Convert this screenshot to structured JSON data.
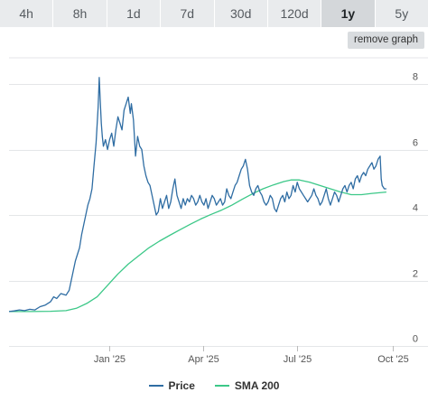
{
  "tabs": [
    {
      "label": "4h",
      "active": false
    },
    {
      "label": "8h",
      "active": false
    },
    {
      "label": "1d",
      "active": false
    },
    {
      "label": "7d",
      "active": false
    },
    {
      "label": "30d",
      "active": false
    },
    {
      "label": "120d",
      "active": false
    },
    {
      "label": "1y",
      "active": true
    },
    {
      "label": "5y",
      "active": false
    }
  ],
  "remove_graph_label": "remove graph",
  "chart_data": {
    "type": "line",
    "title": "",
    "xlabel": "",
    "ylabel": "",
    "ylim": [
      0,
      8.8
    ],
    "yticks": [
      0,
      2,
      4,
      6,
      8
    ],
    "grid": true,
    "legend": "bottom",
    "x_ticks": [
      {
        "label": "Jan '25",
        "day": 97
      },
      {
        "label": "Apr '25",
        "day": 187
      },
      {
        "label": "Jul '25",
        "day": 278
      },
      {
        "label": "Oct '25",
        "day": 370
      }
    ],
    "xlim_days": [
      0,
      378
    ],
    "x_unit": "days from 2024-09-26",
    "series": [
      {
        "name": "Price",
        "color": "#2f6da3",
        "points": [
          [
            0,
            1.05
          ],
          [
            5,
            1.07
          ],
          [
            10,
            1.1
          ],
          [
            15,
            1.08
          ],
          [
            20,
            1.12
          ],
          [
            25,
            1.1
          ],
          [
            30,
            1.2
          ],
          [
            35,
            1.25
          ],
          [
            40,
            1.35
          ],
          [
            43,
            1.5
          ],
          [
            46,
            1.45
          ],
          [
            50,
            1.6
          ],
          [
            55,
            1.55
          ],
          [
            58,
            1.7
          ],
          [
            60,
            2.0
          ],
          [
            62,
            2.3
          ],
          [
            64,
            2.6
          ],
          [
            66,
            2.8
          ],
          [
            68,
            3.0
          ],
          [
            70,
            3.4
          ],
          [
            72,
            3.7
          ],
          [
            74,
            4.0
          ],
          [
            76,
            4.3
          ],
          [
            78,
            4.5
          ],
          [
            80,
            4.8
          ],
          [
            82,
            5.5
          ],
          [
            84,
            6.2
          ],
          [
            86,
            7.3
          ],
          [
            87,
            8.2
          ],
          [
            88,
            7.5
          ],
          [
            89,
            6.8
          ],
          [
            90,
            6.4
          ],
          [
            91,
            6.1
          ],
          [
            93,
            6.3
          ],
          [
            95,
            6.0
          ],
          [
            97,
            6.3
          ],
          [
            99,
            6.5
          ],
          [
            101,
            6.1
          ],
          [
            103,
            6.6
          ],
          [
            105,
            7.0
          ],
          [
            107,
            6.8
          ],
          [
            109,
            6.6
          ],
          [
            111,
            7.2
          ],
          [
            113,
            7.4
          ],
          [
            115,
            7.6
          ],
          [
            117,
            7.1
          ],
          [
            118,
            7.4
          ],
          [
            120,
            6.9
          ],
          [
            122,
            5.8
          ],
          [
            124,
            6.4
          ],
          [
            126,
            6.1
          ],
          [
            128,
            6.0
          ],
          [
            130,
            5.5
          ],
          [
            132,
            5.2
          ],
          [
            134,
            5.0
          ],
          [
            136,
            4.9
          ],
          [
            138,
            4.6
          ],
          [
            140,
            4.3
          ],
          [
            142,
            4.0
          ],
          [
            144,
            4.1
          ],
          [
            146,
            4.5
          ],
          [
            148,
            4.2
          ],
          [
            150,
            4.4
          ],
          [
            152,
            4.6
          ],
          [
            154,
            4.2
          ],
          [
            156,
            4.4
          ],
          [
            158,
            4.8
          ],
          [
            160,
            5.1
          ],
          [
            162,
            4.6
          ],
          [
            164,
            4.4
          ],
          [
            166,
            4.2
          ],
          [
            168,
            4.5
          ],
          [
            170,
            4.3
          ],
          [
            172,
            4.5
          ],
          [
            174,
            4.4
          ],
          [
            176,
            4.6
          ],
          [
            178,
            4.5
          ],
          [
            180,
            4.3
          ],
          [
            182,
            4.4
          ],
          [
            184,
            4.6
          ],
          [
            186,
            4.4
          ],
          [
            188,
            4.3
          ],
          [
            190,
            4.5
          ],
          [
            192,
            4.2
          ],
          [
            194,
            4.4
          ],
          [
            196,
            4.6
          ],
          [
            198,
            4.5
          ],
          [
            200,
            4.3
          ],
          [
            202,
            4.4
          ],
          [
            204,
            4.5
          ],
          [
            206,
            4.3
          ],
          [
            208,
            4.4
          ],
          [
            210,
            4.8
          ],
          [
            212,
            4.6
          ],
          [
            214,
            4.5
          ],
          [
            216,
            4.7
          ],
          [
            218,
            4.9
          ],
          [
            220,
            5.0
          ],
          [
            222,
            5.2
          ],
          [
            224,
            5.4
          ],
          [
            226,
            5.5
          ],
          [
            228,
            5.7
          ],
          [
            230,
            5.4
          ],
          [
            232,
            4.9
          ],
          [
            234,
            4.7
          ],
          [
            236,
            4.6
          ],
          [
            238,
            4.8
          ],
          [
            240,
            4.9
          ],
          [
            242,
            4.7
          ],
          [
            244,
            4.6
          ],
          [
            246,
            4.4
          ],
          [
            248,
            4.3
          ],
          [
            250,
            4.4
          ],
          [
            252,
            4.6
          ],
          [
            254,
            4.5
          ],
          [
            256,
            4.2
          ],
          [
            258,
            4.1
          ],
          [
            260,
            4.3
          ],
          [
            262,
            4.5
          ],
          [
            264,
            4.6
          ],
          [
            266,
            4.4
          ],
          [
            268,
            4.7
          ],
          [
            270,
            4.5
          ],
          [
            272,
            4.6
          ],
          [
            274,
            4.9
          ],
          [
            276,
            4.7
          ],
          [
            278,
            5.0
          ],
          [
            280,
            4.8
          ],
          [
            282,
            4.7
          ],
          [
            284,
            4.6
          ],
          [
            286,
            4.5
          ],
          [
            288,
            4.4
          ],
          [
            290,
            4.5
          ],
          [
            292,
            4.6
          ],
          [
            294,
            4.8
          ],
          [
            296,
            4.6
          ],
          [
            298,
            4.5
          ],
          [
            300,
            4.3
          ],
          [
            302,
            4.4
          ],
          [
            304,
            4.6
          ],
          [
            306,
            4.8
          ],
          [
            308,
            4.5
          ],
          [
            310,
            4.3
          ],
          [
            312,
            4.5
          ],
          [
            314,
            4.7
          ],
          [
            316,
            4.6
          ],
          [
            318,
            4.4
          ],
          [
            320,
            4.6
          ],
          [
            322,
            4.8
          ],
          [
            324,
            4.9
          ],
          [
            326,
            4.7
          ],
          [
            328,
            4.9
          ],
          [
            330,
            5.0
          ],
          [
            332,
            4.8
          ],
          [
            334,
            5.1
          ],
          [
            336,
            5.2
          ],
          [
            338,
            5.0
          ],
          [
            340,
            5.2
          ],
          [
            342,
            5.3
          ],
          [
            344,
            5.2
          ],
          [
            346,
            5.4
          ],
          [
            348,
            5.5
          ],
          [
            350,
            5.6
          ],
          [
            352,
            5.4
          ],
          [
            354,
            5.5
          ],
          [
            356,
            5.7
          ],
          [
            358,
            5.8
          ],
          [
            359,
            5.1
          ],
          [
            360,
            4.9
          ],
          [
            362,
            4.8
          ],
          [
            364,
            4.8
          ]
        ]
      },
      {
        "name": "SMA 200",
        "color": "#3cc888",
        "points": [
          [
            0,
            1.05
          ],
          [
            20,
            1.05
          ],
          [
            40,
            1.06
          ],
          [
            55,
            1.08
          ],
          [
            65,
            1.15
          ],
          [
            75,
            1.3
          ],
          [
            85,
            1.5
          ],
          [
            95,
            1.85
          ],
          [
            105,
            2.2
          ],
          [
            115,
            2.5
          ],
          [
            125,
            2.75
          ],
          [
            135,
            3.0
          ],
          [
            145,
            3.2
          ],
          [
            155,
            3.38
          ],
          [
            165,
            3.55
          ],
          [
            175,
            3.72
          ],
          [
            185,
            3.88
          ],
          [
            195,
            4.02
          ],
          [
            205,
            4.15
          ],
          [
            215,
            4.3
          ],
          [
            225,
            4.48
          ],
          [
            235,
            4.65
          ],
          [
            245,
            4.8
          ],
          [
            255,
            4.92
          ],
          [
            265,
            5.02
          ],
          [
            272,
            5.07
          ],
          [
            280,
            5.07
          ],
          [
            290,
            5.0
          ],
          [
            300,
            4.9
          ],
          [
            310,
            4.8
          ],
          [
            320,
            4.7
          ],
          [
            330,
            4.62
          ],
          [
            340,
            4.62
          ],
          [
            350,
            4.66
          ],
          [
            364,
            4.7
          ]
        ]
      }
    ]
  }
}
